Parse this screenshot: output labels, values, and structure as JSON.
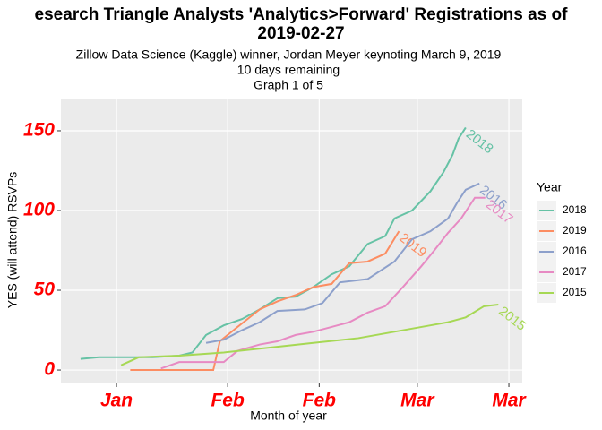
{
  "chart_data": {
    "type": "line",
    "title": [
      "esearch Triangle Analysts 'Analytics>Forward' Registrations as of",
      "2019-02-27"
    ],
    "subtitle": [
      "Zillow Data Science (Kaggle) winner, Jordan Meyer keynoting March 9, 2019",
      "10 days remaining",
      "Graph 1 of 5"
    ],
    "x_label": "Month of year",
    "y_label": "YES (will attend) RSVPs",
    "legend_title": "Year",
    "legend_position": "right",
    "grid": true,
    "xlim": [
      6.5,
      77.05
    ],
    "ylim": [
      -8.4,
      170.2
    ],
    "xticks": [
      {
        "value": 15,
        "label": "Jan"
      },
      {
        "value": 32,
        "label": "Feb"
      },
      {
        "value": 46,
        "label": "Feb"
      },
      {
        "value": 61,
        "label": "Mar"
      },
      {
        "value": 75,
        "label": "Mar"
      }
    ],
    "yticks": [
      0,
      50,
      100,
      150
    ],
    "series": [
      {
        "name": "2018",
        "color": "#66c2a5",
        "x": [
          9.5,
          12.3,
          16.4,
          20.5,
          24.6,
          26.6,
          28.7,
          31.4,
          34.2,
          36.9,
          39.6,
          42.4,
          45.1,
          47.9,
          50.6,
          53.4,
          56.1,
          57.5,
          60.2,
          63.0,
          65.0,
          66.4,
          67.3,
          68.4
        ],
        "values": [
          7,
          8,
          8,
          8,
          9,
          11,
          22,
          28,
          32,
          38,
          45,
          46,
          52,
          60,
          65,
          79,
          84,
          95,
          100,
          112,
          124,
          135,
          145,
          152
        ]
      },
      {
        "name": "2019",
        "color": "#fc8d62",
        "x": [
          17.1,
          29.8,
          30.8,
          33.5,
          36.9,
          39.6,
          42.4,
          45.1,
          47.9,
          50.6,
          53.4,
          56.1,
          58.2
        ],
        "values": [
          0,
          0,
          18,
          27,
          38,
          43,
          47,
          52,
          54,
          67,
          68,
          73,
          87
        ]
      },
      {
        "name": "2016",
        "color": "#8da0cb",
        "x": [
          28.7,
          31.4,
          34.2,
          36.9,
          39.6,
          43.8,
          46.5,
          49.2,
          53.4,
          57.5,
          60.2,
          63.0,
          65.7,
          67.1,
          68.4,
          70.5
        ],
        "values": [
          17,
          19,
          25,
          30,
          37,
          38,
          42,
          55,
          57,
          68,
          82,
          87,
          95,
          105,
          113,
          117
        ]
      },
      {
        "name": "2017",
        "color": "#e78ac3",
        "x": [
          21.8,
          24.6,
          31.4,
          33.5,
          36.9,
          39.6,
          42.4,
          45.1,
          47.9,
          50.6,
          53.4,
          56.1,
          58.8,
          61.6,
          63.6,
          65.7,
          67.7,
          69.8,
          71.4
        ],
        "values": [
          1,
          5,
          5,
          12,
          16,
          18,
          22,
          24,
          27,
          30,
          36,
          40,
          52,
          65,
          75,
          86,
          95,
          108,
          108
        ]
      },
      {
        "name": "2015",
        "color": "#a6d854",
        "x": [
          15.7,
          18.4,
          24.6,
          31.4,
          38.3,
          45.1,
          52.0,
          57.5,
          63.0,
          65.7,
          68.4,
          71.2,
          73.4
        ],
        "values": [
          3,
          8,
          9,
          11,
          14,
          17,
          20,
          24,
          28,
          30,
          33,
          40,
          41
        ]
      }
    ]
  }
}
